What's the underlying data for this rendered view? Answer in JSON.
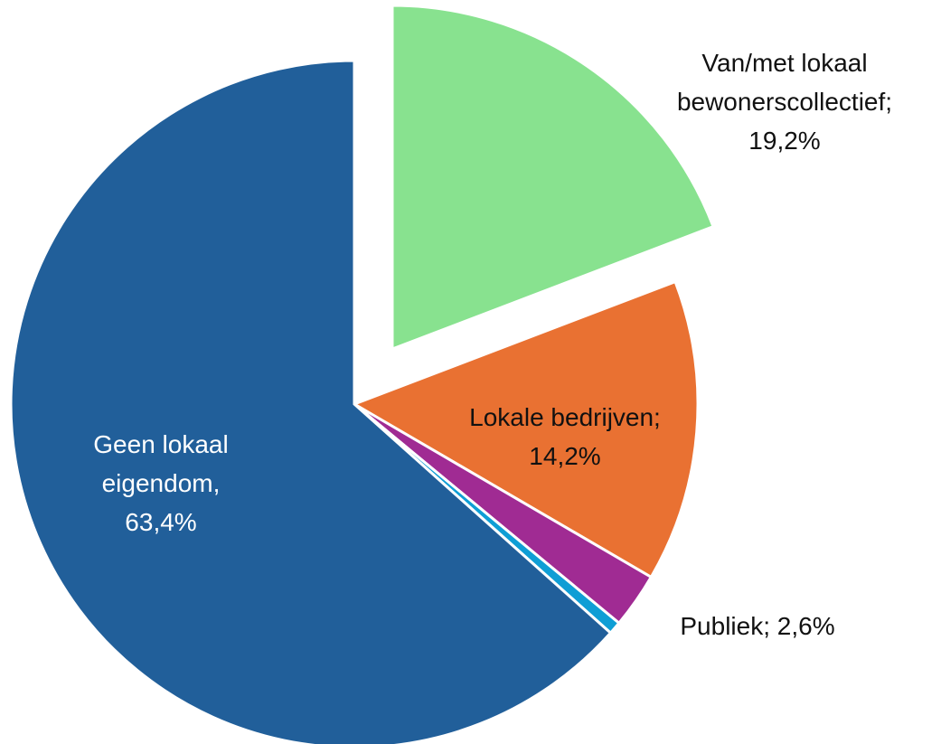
{
  "chart_data": {
    "type": "pie",
    "categories": [
      "Van/met lokaal bewonerscollectief;",
      "Lokale bedrijven;",
      "Publiek;",
      null,
      "Geen lokaal eigendom,"
    ],
    "values": [
      19.2,
      14.2,
      2.6,
      0.6,
      63.4
    ],
    "value_labels": [
      "19,2%",
      "14,2%",
      "2,6%",
      null,
      "63,4%"
    ],
    "colors": [
      "#88e28f",
      "#e97132",
      "#a02b93",
      "#0f9ed5",
      "#215f9a"
    ]
  }
}
